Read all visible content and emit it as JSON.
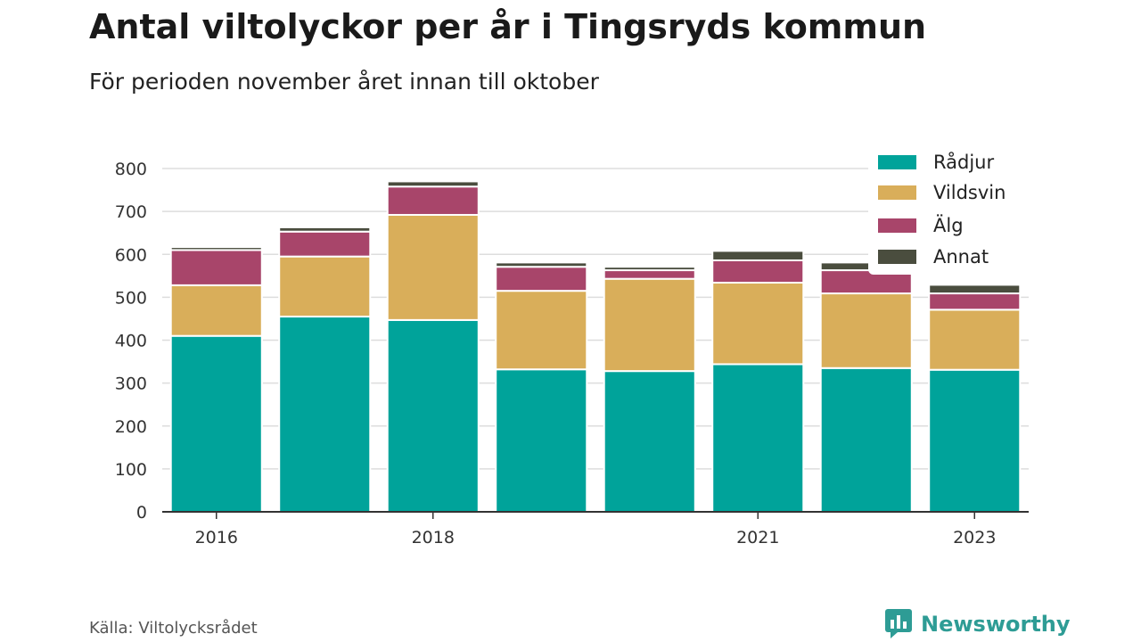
{
  "title": "Antal viltolyckor per år i Tingsryds kommun",
  "subtitle": "För perioden november året innan till oktober",
  "source": "Källa: Viltolycksrådet",
  "brand": {
    "name": "Newsworthy",
    "logo_icon": "bar-chart-bubble-icon",
    "color": "#2e9c95"
  },
  "colors": {
    "Rådjur": "#00a39a",
    "Vildsvin": "#d9ae5a",
    "Älg": "#a8456a",
    "Annat": "#4a4d3e"
  },
  "chart_data": {
    "type": "bar",
    "stacked": true,
    "title": "Antal viltolyckor per år i Tingsryds kommun",
    "subtitle": "För perioden november året innan till oktober",
    "x": [
      2016,
      2017,
      2018,
      2019,
      2020,
      2021,
      2022,
      2023
    ],
    "x_tick_labels": [
      "2016",
      "2018",
      "2021",
      "2023"
    ],
    "x_tick_values": [
      2016,
      2018,
      2021,
      2023
    ],
    "ylim": [
      0,
      800
    ],
    "y_ticks": [
      0,
      100,
      200,
      300,
      400,
      500,
      600,
      700,
      800
    ],
    "grid": true,
    "legend_position": "top-right",
    "series": [
      {
        "name": "Rådjur",
        "values": [
          410,
          455,
          447,
          332,
          328,
          344,
          335,
          331
        ]
      },
      {
        "name": "Vildsvin",
        "values": [
          118,
          140,
          245,
          183,
          215,
          190,
          174,
          140
        ]
      },
      {
        "name": "Älg",
        "values": [
          82,
          58,
          66,
          56,
          20,
          52,
          54,
          38
        ]
      },
      {
        "name": "Annat",
        "values": [
          7,
          10,
          12,
          10,
          8,
          22,
          18,
          20
        ]
      }
    ]
  }
}
